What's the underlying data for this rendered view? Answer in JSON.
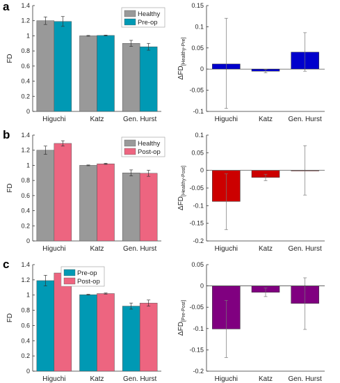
{
  "panels": [
    {
      "letter": "a",
      "left": {
        "type": "bar",
        "ylabel": "FD",
        "categories": [
          "Higuchi",
          "Katz",
          "Gen. Hurst"
        ],
        "ylim": [
          0,
          1.4
        ],
        "yticks": [
          "0",
          "0.2",
          "0.4",
          "0.6",
          "0.8",
          "1",
          "1.2",
          "1.4"
        ],
        "legend_position": "top-right",
        "series": [
          {
            "name": "Healthy",
            "color": "#999999",
            "values": [
              1.2,
              1.0,
              0.9
            ],
            "errors": [
              0.05,
              0.005,
              0.04
            ]
          },
          {
            "name": "Pre-op",
            "color": "#0099B4",
            "values": [
              1.19,
              1.005,
              0.855
            ],
            "errors": [
              0.065,
              0.005,
              0.045
            ]
          }
        ]
      },
      "right": {
        "type": "bar",
        "ylabel_main": "ΔFD",
        "ylabel_sub": "[Healthy-Pre]",
        "categories": [
          "Higuchi",
          "Katz",
          "Gen. Hurst"
        ],
        "ylim": [
          -0.1,
          0.15
        ],
        "yticks": [
          "-0.1",
          "-0.05",
          "0",
          "0.05",
          "0.1",
          "0.15"
        ],
        "color": "#0000CC",
        "values": [
          0.012,
          -0.005,
          0.04
        ],
        "error_low": [
          -0.093,
          -0.009,
          -0.005
        ],
        "error_high": [
          0.12,
          -0.001,
          0.086
        ]
      }
    },
    {
      "letter": "b",
      "left": {
        "type": "bar",
        "ylabel": "FD",
        "categories": [
          "Higuchi",
          "Katz",
          "Gen. Hurst"
        ],
        "ylim": [
          0,
          1.4
        ],
        "yticks": [
          "0",
          "0.2",
          "0.4",
          "0.6",
          "0.8",
          "1",
          "1.2",
          "1.4"
        ],
        "legend_position": "top-right",
        "series": [
          {
            "name": "Healthy",
            "color": "#999999",
            "values": [
              1.2,
              1.0,
              0.9
            ],
            "errors": [
              0.055,
              0.005,
              0.04
            ]
          },
          {
            "name": "Post-op",
            "color": "#ED6580",
            "values": [
              1.29,
              1.02,
              0.895
            ],
            "errors": [
              0.035,
              0.007,
              0.04
            ]
          }
        ]
      },
      "right": {
        "type": "bar",
        "ylabel_main": "ΔFD",
        "ylabel_sub": "[Healthy-Post]",
        "categories": [
          "Higuchi",
          "Katz",
          "Gen. Hurst"
        ],
        "ylim": [
          -0.2,
          0.1
        ],
        "yticks": [
          "-0.2",
          "-0.15",
          "-0.1",
          "-0.05",
          "0",
          "0.05",
          "0.1"
        ],
        "color": "#CC0000",
        "values": [
          -0.088,
          -0.02,
          -0.001
        ],
        "error_low": [
          -0.168,
          -0.029,
          -0.07
        ],
        "error_high": [
          -0.01,
          -0.011,
          0.07
        ]
      }
    },
    {
      "letter": "c",
      "left": {
        "type": "bar",
        "ylabel": "FD",
        "categories": [
          "Higuchi",
          "Katz",
          "Gen. Hurst"
        ],
        "ylim": [
          0,
          1.4
        ],
        "yticks": [
          "0",
          "0.2",
          "0.4",
          "0.6",
          "0.8",
          "1",
          "1.2",
          "1.4"
        ],
        "legend_position": "top-left",
        "series": [
          {
            "name": "Pre-op",
            "color": "#0099B4",
            "values": [
              1.19,
              1.005,
              0.855
            ],
            "errors": [
              0.07,
              0.005,
              0.04
            ]
          },
          {
            "name": "Post-op",
            "color": "#ED6580",
            "values": [
              1.29,
              1.02,
              0.895
            ],
            "errors": [
              0.035,
              0.007,
              0.04
            ]
          }
        ]
      },
      "right": {
        "type": "bar",
        "ylabel_main": "ΔFD",
        "ylabel_sub": "[Pre-Post]",
        "categories": [
          "Higuchi",
          "Katz",
          "Gen. Hurst"
        ],
        "ylim": [
          -0.2,
          0.05
        ],
        "yticks": [
          "-0.2",
          "-0.15",
          "-0.1",
          "-0.05",
          "0",
          "0.05"
        ],
        "color": "#800080",
        "values": [
          -0.101,
          -0.015,
          -0.041
        ],
        "error_low": [
          -0.168,
          -0.025,
          -0.102
        ],
        "error_high": [
          -0.034,
          -0.005,
          0.019
        ]
      }
    }
  ],
  "chart_data": [
    {
      "type": "bar",
      "title": "",
      "xlabel": "",
      "ylabel": "FD",
      "categories": [
        "Higuchi",
        "Katz",
        "Gen. Hurst"
      ],
      "ylim": [
        0,
        1.4
      ],
      "series": [
        {
          "name": "Healthy",
          "values": [
            1.2,
            1.0,
            0.9
          ]
        },
        {
          "name": "Pre-op",
          "values": [
            1.19,
            1.005,
            0.855
          ]
        }
      ]
    },
    {
      "type": "bar",
      "title": "",
      "xlabel": "",
      "ylabel": "ΔFD[Healthy-Pre]",
      "categories": [
        "Higuchi",
        "Katz",
        "Gen. Hurst"
      ],
      "ylim": [
        -0.1,
        0.15
      ],
      "values": [
        0.012,
        -0.005,
        0.04
      ]
    },
    {
      "type": "bar",
      "title": "",
      "xlabel": "",
      "ylabel": "FD",
      "categories": [
        "Higuchi",
        "Katz",
        "Gen. Hurst"
      ],
      "ylim": [
        0,
        1.4
      ],
      "series": [
        {
          "name": "Healthy",
          "values": [
            1.2,
            1.0,
            0.9
          ]
        },
        {
          "name": "Post-op",
          "values": [
            1.29,
            1.02,
            0.895
          ]
        }
      ]
    },
    {
      "type": "bar",
      "title": "",
      "xlabel": "",
      "ylabel": "ΔFD[Healthy-Post]",
      "categories": [
        "Higuchi",
        "Katz",
        "Gen. Hurst"
      ],
      "ylim": [
        -0.2,
        0.1
      ],
      "values": [
        -0.088,
        -0.02,
        -0.001
      ]
    },
    {
      "type": "bar",
      "title": "",
      "xlabel": "",
      "ylabel": "FD",
      "categories": [
        "Higuchi",
        "Katz",
        "Gen. Hurst"
      ],
      "ylim": [
        0,
        1.4
      ],
      "series": [
        {
          "name": "Pre-op",
          "values": [
            1.19,
            1.005,
            0.855
          ]
        },
        {
          "name": "Post-op",
          "values": [
            1.29,
            1.02,
            0.895
          ]
        }
      ]
    },
    {
      "type": "bar",
      "title": "",
      "xlabel": "",
      "ylabel": "ΔFD[Pre-Post]",
      "categories": [
        "Higuchi",
        "Katz",
        "Gen. Hurst"
      ],
      "ylim": [
        -0.2,
        0.05
      ],
      "values": [
        -0.101,
        -0.015,
        -0.041
      ]
    }
  ]
}
